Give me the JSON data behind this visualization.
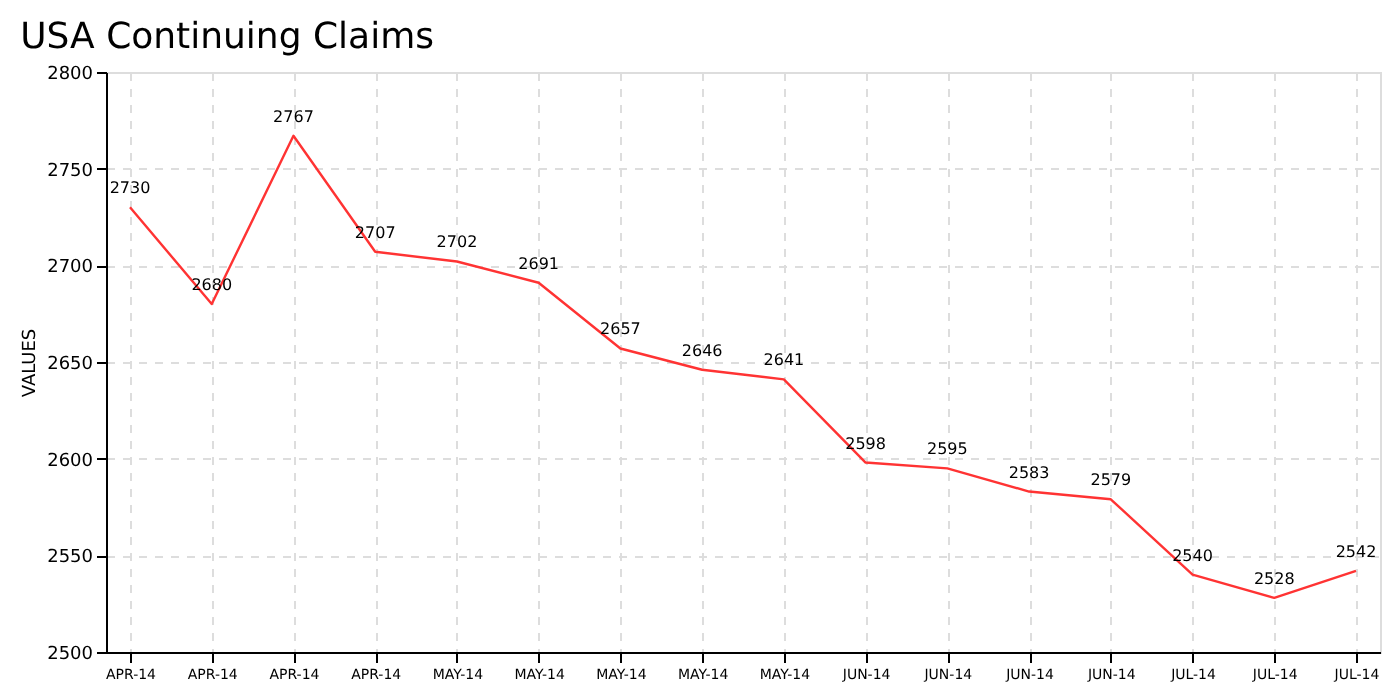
{
  "chart_data": {
    "type": "line",
    "title": "USA Continuing Claims",
    "ylabel": "VALUES",
    "categories": [
      "APR-14",
      "APR-14",
      "APR-14",
      "APR-14",
      "MAY-14",
      "MAY-14",
      "MAY-14",
      "MAY-14",
      "MAY-14",
      "JUN-14",
      "JUN-14",
      "JUN-14",
      "JUN-14",
      "JUL-14",
      "JUL-14",
      "JUL-14"
    ],
    "series": [
      {
        "color": "#ff3333",
        "values": [
          2730,
          2680,
          2767,
          2707,
          2702,
          2691,
          2657,
          2646,
          2641,
          2598,
          2595,
          2583,
          2579,
          2540,
          2528,
          2542
        ]
      }
    ],
    "ylim": [
      2500,
      2800
    ],
    "yticks": [
      2500,
      2550,
      2600,
      2650,
      2700,
      2750,
      2800
    ],
    "grid": true,
    "data_labels": true,
    "marker": "none",
    "line_style": "solid"
  }
}
